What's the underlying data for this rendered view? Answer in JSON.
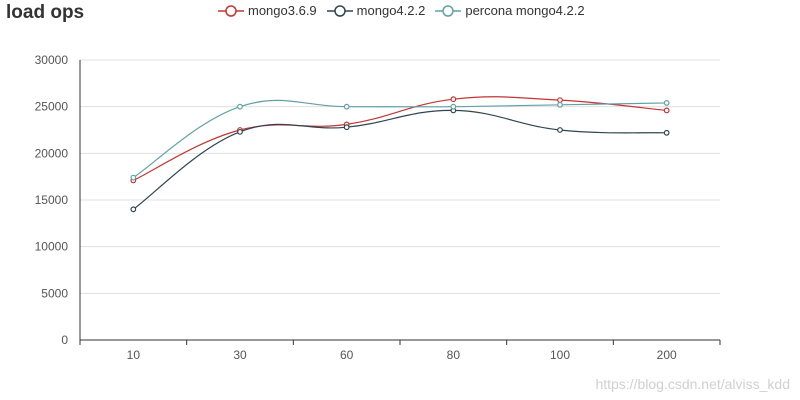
{
  "chart_data": {
    "type": "line",
    "title": "load ops",
    "categories": [
      "10",
      "30",
      "60",
      "80",
      "100",
      "200"
    ],
    "ylim": [
      0,
      30000
    ],
    "yticks": [
      "0",
      "5000",
      "10000",
      "15000",
      "20000",
      "25000",
      "30000"
    ],
    "xlabel": "",
    "ylabel": "",
    "grid": true,
    "legend_position": "top",
    "series": [
      {
        "name": "mongo3.6.9",
        "color": "#c23531",
        "values": [
          17100,
          22500,
          23100,
          25800,
          25700,
          24600
        ]
      },
      {
        "name": "mongo4.2.2",
        "color": "#2f4554",
        "values": [
          14000,
          22300,
          22800,
          24600,
          22500,
          22200
        ]
      },
      {
        "name": "percona mongo4.2.2",
        "color": "#61a0a8",
        "values": [
          17400,
          25000,
          25000,
          25000,
          25200,
          25400
        ]
      }
    ]
  },
  "watermark": "https://blog.csdn.net/alviss_kdd"
}
